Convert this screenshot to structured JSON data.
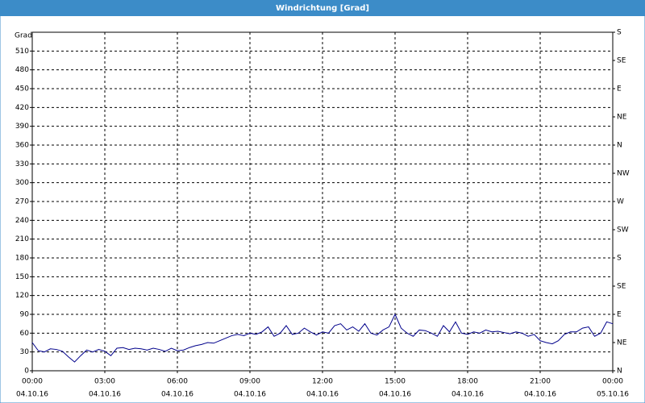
{
  "chart_data": {
    "type": "line",
    "title": "Windrichtung [Grad]",
    "y_label": "Grad",
    "x": [
      0,
      0.25,
      0.5,
      0.75,
      1,
      1.25,
      1.5,
      1.75,
      2,
      2.25,
      2.5,
      2.75,
      3,
      3.25,
      3.5,
      3.75,
      4,
      4.25,
      4.5,
      4.75,
      5,
      5.25,
      5.5,
      5.75,
      6,
      6.25,
      6.5,
      6.75,
      7,
      7.25,
      7.5,
      7.75,
      8,
      8.25,
      8.5,
      8.75,
      9,
      9.25,
      9.5,
      9.75,
      10,
      10.25,
      10.5,
      10.75,
      11,
      11.25,
      11.5,
      11.75,
      12,
      12.25,
      12.5,
      12.75,
      13,
      13.25,
      13.5,
      13.75,
      14,
      14.25,
      14.5,
      14.75,
      15,
      15.25,
      15.5,
      15.75,
      16,
      16.25,
      16.5,
      16.75,
      17,
      17.25,
      17.5,
      17.75,
      18,
      18.25,
      18.5,
      18.75,
      19,
      19.25,
      19.5,
      19.75,
      20,
      20.25,
      20.5,
      20.75,
      21,
      21.25,
      21.5,
      21.75,
      22,
      22.25,
      22.5,
      22.75,
      23,
      23.25,
      23.5,
      23.75,
      24
    ],
    "series": [
      {
        "name": "Windrichtung",
        "color": "#00008b",
        "values": [
          45,
          32,
          30,
          35,
          34,
          31,
          22,
          14,
          24,
          33,
          30,
          34,
          31,
          24,
          36,
          37,
          34,
          36,
          35,
          33,
          36,
          34,
          31,
          36,
          32,
          33,
          37,
          40,
          42,
          45,
          44,
          48,
          52,
          56,
          58,
          56,
          60,
          58,
          62,
          70,
          55,
          60,
          72,
          58,
          60,
          68,
          62,
          57,
          62,
          60,
          72,
          75,
          65,
          70,
          63,
          75,
          60,
          57,
          65,
          70,
          90,
          68,
          60,
          55,
          65,
          64,
          60,
          55,
          72,
          62,
          78,
          60,
          58,
          62,
          60,
          65,
          62,
          63,
          61,
          59,
          62,
          60,
          55,
          58,
          48,
          45,
          43,
          48,
          58,
          62,
          62,
          68,
          70,
          55,
          60,
          78,
          75
        ]
      }
    ],
    "xlim": [
      0,
      24
    ],
    "xticks": [
      {
        "value": 0,
        "label": "00:00"
      },
      {
        "value": 3,
        "label": "03:00"
      },
      {
        "value": 6,
        "label": "06:00"
      },
      {
        "value": 9,
        "label": "09:00"
      },
      {
        "value": 12,
        "label": "12:00"
      },
      {
        "value": 15,
        "label": "15:00"
      },
      {
        "value": 18,
        "label": "18:00"
      },
      {
        "value": 21,
        "label": "21:00"
      },
      {
        "value": 24,
        "label": "00:00"
      }
    ],
    "xtick_dates": [
      "04.10.16",
      "04.10.16",
      "04.10.16",
      "04.10.16",
      "04.10.16",
      "04.10.16",
      "04.10.16",
      "04.10.16",
      "05.10.16"
    ],
    "ylim": [
      0,
      540
    ],
    "yticks": [
      0,
      30,
      60,
      90,
      120,
      150,
      180,
      210,
      240,
      270,
      300,
      330,
      360,
      390,
      420,
      450,
      480,
      510
    ],
    "y2lim": [
      0,
      540
    ],
    "y2ticks": [
      {
        "value": 0,
        "label": "N"
      },
      {
        "value": 45,
        "label": "NE"
      },
      {
        "value": 90,
        "label": "E"
      },
      {
        "value": 135,
        "label": "SE"
      },
      {
        "value": 180,
        "label": "S"
      },
      {
        "value": 225,
        "label": "SW"
      },
      {
        "value": 270,
        "label": "W"
      },
      {
        "value": 315,
        "label": "NW"
      },
      {
        "value": 360,
        "label": "N"
      },
      {
        "value": 405,
        "label": "NE"
      },
      {
        "value": 450,
        "label": "E"
      },
      {
        "value": 495,
        "label": "SE"
      },
      {
        "value": 540,
        "label": "S"
      }
    ],
    "grid": true
  }
}
